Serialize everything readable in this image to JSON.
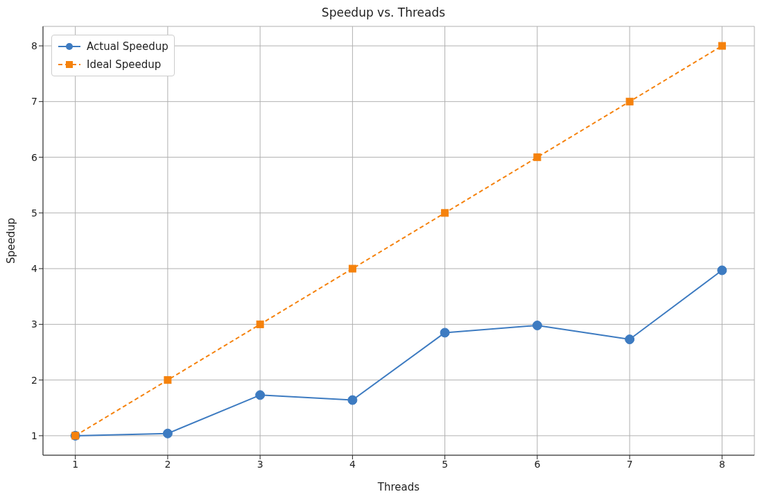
{
  "chart_data": {
    "type": "line",
    "title": "Speedup vs. Threads",
    "xlabel": "Threads",
    "ylabel": "Speedup",
    "x": [
      1,
      2,
      3,
      4,
      5,
      6,
      7,
      8
    ],
    "series": [
      {
        "name": "Actual Speedup",
        "color": "#3d7bc1",
        "values": [
          1.0,
          1.04,
          1.73,
          1.64,
          2.85,
          2.98,
          2.73,
          3.97
        ],
        "marker": "circle",
        "line_style": "solid"
      },
      {
        "name": "Ideal Speedup",
        "color": "#f5820d",
        "values": [
          1,
          2,
          3,
          4,
          5,
          6,
          7,
          8
        ],
        "marker": "square",
        "line_style": "dashed"
      }
    ],
    "xlim": [
      0.65,
      8.35
    ],
    "xticks": [
      1,
      2,
      3,
      4,
      5,
      6,
      7,
      8
    ],
    "ylim": [
      0.65,
      8.35
    ],
    "yticks": [
      1,
      2,
      3,
      4,
      5,
      6,
      7,
      8
    ],
    "grid": true,
    "legend": "top left"
  }
}
